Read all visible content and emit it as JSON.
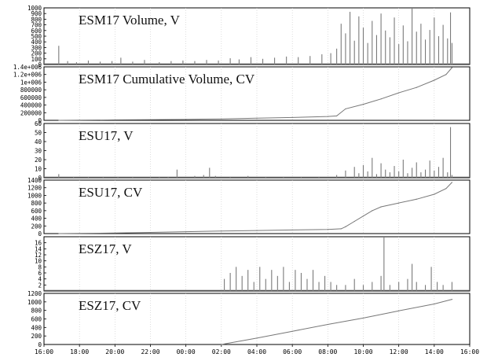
{
  "chart_data": {
    "type": "line",
    "x_axis": {
      "ticks": [
        "16:00",
        "18:00",
        "20:00",
        "22:00",
        "00:00",
        "02:00",
        "04:00",
        "06:00",
        "08:00",
        "10:00",
        "12:00",
        "14:00",
        "16:00"
      ]
    },
    "panels": [
      {
        "id": "esm17-v",
        "title": "ESM17 Volume, V",
        "kind": "bar",
        "ylim": [
          0,
          1000
        ],
        "yticks": [
          "1000",
          "900",
          "800",
          "700",
          "600",
          "500",
          "400",
          "300",
          "200",
          "100",
          "0"
        ],
        "points": [
          [
            "16:50",
            330
          ],
          [
            "17:20",
            60
          ],
          [
            "17:50",
            40
          ],
          [
            "18:30",
            70
          ],
          [
            "19:10",
            50
          ],
          [
            "19:50",
            60
          ],
          [
            "20:20",
            120
          ],
          [
            "21:00",
            50
          ],
          [
            "21:40",
            80
          ],
          [
            "22:30",
            40
          ],
          [
            "23:10",
            60
          ],
          [
            "23:50",
            70
          ],
          [
            "00:30",
            60
          ],
          [
            "01:10",
            80
          ],
          [
            "01:50",
            70
          ],
          [
            "02:30",
            110
          ],
          [
            "03:00",
            90
          ],
          [
            "03:40",
            130
          ],
          [
            "04:20",
            100
          ],
          [
            "05:00",
            120
          ],
          [
            "05:40",
            140
          ],
          [
            "06:20",
            130
          ],
          [
            "07:00",
            150
          ],
          [
            "07:40",
            180
          ],
          [
            "08:10",
            200
          ],
          [
            "08:30",
            280
          ],
          [
            "08:45",
            720
          ],
          [
            "09:00",
            550
          ],
          [
            "09:15",
            930
          ],
          [
            "09:30",
            420
          ],
          [
            "09:45",
            850
          ],
          [
            "10:00",
            650
          ],
          [
            "10:15",
            380
          ],
          [
            "10:30",
            770
          ],
          [
            "10:45",
            520
          ],
          [
            "11:00",
            900
          ],
          [
            "11:15",
            600
          ],
          [
            "11:30",
            480
          ],
          [
            "11:45",
            830
          ],
          [
            "12:00",
            360
          ],
          [
            "12:15",
            690
          ],
          [
            "12:30",
            410
          ],
          [
            "12:45",
            1000
          ],
          [
            "13:00",
            580
          ],
          [
            "13:15",
            720
          ],
          [
            "13:30",
            440
          ],
          [
            "13:45",
            610
          ],
          [
            "14:00",
            830
          ],
          [
            "14:15",
            500
          ],
          [
            "14:30",
            700
          ],
          [
            "14:45",
            460
          ],
          [
            "14:55",
            920
          ],
          [
            "15:00",
            380
          ]
        ]
      },
      {
        "id": "esm17-cv",
        "title": "ESM17 Cumulative Volume, CV",
        "kind": "line",
        "ylim": [
          0,
          1400000
        ],
        "yticks": [
          "1.4e+006",
          "1.2e+006",
          "1e+006",
          "800000",
          "600000",
          "400000",
          "200000",
          "0"
        ],
        "points": [
          [
            "16:50",
            0
          ],
          [
            "18:00",
            5000
          ],
          [
            "20:00",
            12000
          ],
          [
            "22:00",
            18000
          ],
          [
            "00:00",
            26000
          ],
          [
            "02:00",
            38000
          ],
          [
            "04:00",
            55000
          ],
          [
            "06:00",
            75000
          ],
          [
            "08:00",
            100000
          ],
          [
            "08:30",
            115000
          ],
          [
            "09:00",
            300000
          ],
          [
            "10:00",
            420000
          ],
          [
            "11:00",
            560000
          ],
          [
            "12:00",
            720000
          ],
          [
            "13:00",
            860000
          ],
          [
            "14:00",
            1050000
          ],
          [
            "14:40",
            1200000
          ],
          [
            "15:00",
            1380000
          ]
        ]
      },
      {
        "id": "esu17-v",
        "title": "ESU17, V",
        "kind": "bar",
        "ylim": [
          0,
          60
        ],
        "yticks": [
          "60",
          "50",
          "40",
          "30",
          "20",
          "10",
          "0"
        ],
        "points": [
          [
            "16:50",
            4
          ],
          [
            "17:40",
            1
          ],
          [
            "18:30",
            1
          ],
          [
            "19:20",
            1
          ],
          [
            "20:10",
            1
          ],
          [
            "21:00",
            1
          ],
          [
            "22:00",
            1
          ],
          [
            "22:30",
            1
          ],
          [
            "23:00",
            1
          ],
          [
            "23:30",
            9
          ],
          [
            "00:30",
            2
          ],
          [
            "01:00",
            3
          ],
          [
            "01:20",
            11
          ],
          [
            "01:40",
            2
          ],
          [
            "02:30",
            1
          ],
          [
            "03:30",
            2
          ],
          [
            "04:30",
            1
          ],
          [
            "05:30",
            1
          ],
          [
            "06:30",
            1
          ],
          [
            "07:30",
            1
          ],
          [
            "08:30",
            3
          ],
          [
            "09:00",
            8
          ],
          [
            "09:30",
            12
          ],
          [
            "09:45",
            5
          ],
          [
            "10:00",
            14
          ],
          [
            "10:15",
            7
          ],
          [
            "10:30",
            22
          ],
          [
            "10:45",
            4
          ],
          [
            "11:00",
            16
          ],
          [
            "11:15",
            9
          ],
          [
            "11:30",
            6
          ],
          [
            "11:45",
            13
          ],
          [
            "12:00",
            7
          ],
          [
            "12:15",
            20
          ],
          [
            "12:30",
            5
          ],
          [
            "12:45",
            11
          ],
          [
            "13:00",
            17
          ],
          [
            "13:15",
            6
          ],
          [
            "13:30",
            9
          ],
          [
            "13:45",
            19
          ],
          [
            "14:00",
            8
          ],
          [
            "14:15",
            12
          ],
          [
            "14:30",
            22
          ],
          [
            "14:45",
            6
          ],
          [
            "14:55",
            56
          ],
          [
            "15:00",
            3
          ]
        ]
      },
      {
        "id": "esu17-cv",
        "title": "ESU17, CV",
        "kind": "line",
        "ylim": [
          0,
          1400
        ],
        "yticks": [
          "1400",
          "1200",
          "1000",
          "800",
          "600",
          "400",
          "200",
          "0"
        ],
        "points": [
          [
            "16:50",
            0
          ],
          [
            "18:00",
            5
          ],
          [
            "20:00",
            15
          ],
          [
            "22:00",
            30
          ],
          [
            "00:00",
            50
          ],
          [
            "02:00",
            65
          ],
          [
            "04:00",
            80
          ],
          [
            "06:00",
            95
          ],
          [
            "08:00",
            110
          ],
          [
            "08:45",
            125
          ],
          [
            "09:00",
            180
          ],
          [
            "09:30",
            320
          ],
          [
            "10:00",
            460
          ],
          [
            "10:30",
            600
          ],
          [
            "11:00",
            700
          ],
          [
            "12:00",
            800
          ],
          [
            "13:00",
            900
          ],
          [
            "14:00",
            1030
          ],
          [
            "14:40",
            1180
          ],
          [
            "15:00",
            1340
          ]
        ]
      },
      {
        "id": "esz17-v",
        "title": "ESZ17, V",
        "kind": "bar",
        "ylim": [
          0,
          18
        ],
        "yticks": [
          "16",
          "14",
          "12",
          "10",
          "8",
          "6",
          "4",
          "2"
        ],
        "points": [
          [
            "02:10",
            4
          ],
          [
            "02:30",
            6
          ],
          [
            "02:50",
            8
          ],
          [
            "03:10",
            5
          ],
          [
            "03:30",
            7
          ],
          [
            "03:50",
            3
          ],
          [
            "04:10",
            8
          ],
          [
            "04:30",
            4
          ],
          [
            "04:50",
            7
          ],
          [
            "05:10",
            5
          ],
          [
            "05:30",
            8
          ],
          [
            "05:50",
            3
          ],
          [
            "06:10",
            7
          ],
          [
            "06:30",
            6
          ],
          [
            "06:50",
            4
          ],
          [
            "07:10",
            7
          ],
          [
            "07:30",
            3
          ],
          [
            "07:50",
            5
          ],
          [
            "08:10",
            3
          ],
          [
            "08:30",
            2
          ],
          [
            "09:00",
            2
          ],
          [
            "09:30",
            4
          ],
          [
            "10:00",
            2
          ],
          [
            "10:30",
            3
          ],
          [
            "11:00",
            5
          ],
          [
            "11:10",
            18
          ],
          [
            "11:30",
            2
          ],
          [
            "12:00",
            3
          ],
          [
            "12:30",
            4
          ],
          [
            "12:45",
            9
          ],
          [
            "13:00",
            3
          ],
          [
            "13:30",
            2
          ],
          [
            "13:50",
            8
          ],
          [
            "14:10",
            3
          ],
          [
            "14:30",
            2
          ],
          [
            "15:00",
            3
          ]
        ]
      },
      {
        "id": "esz17-cv",
        "title": "ESZ17, CV",
        "kind": "line",
        "ylim": [
          0,
          1200
        ],
        "yticks": [
          "1200",
          "1000",
          "800",
          "600",
          "400",
          "200",
          "0"
        ],
        "points": [
          [
            "02:00",
            0
          ],
          [
            "04:00",
            150
          ],
          [
            "06:00",
            310
          ],
          [
            "08:00",
            470
          ],
          [
            "10:00",
            620
          ],
          [
            "12:00",
            790
          ],
          [
            "14:00",
            950
          ],
          [
            "15:00",
            1060
          ]
        ]
      }
    ]
  }
}
